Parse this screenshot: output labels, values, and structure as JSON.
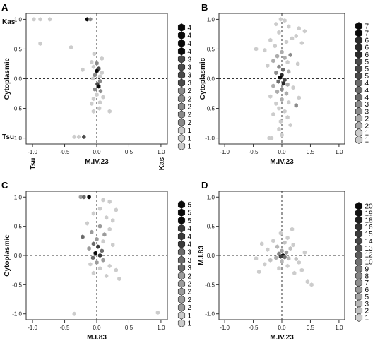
{
  "chart_data": [
    {
      "panel": "A",
      "type": "scatter",
      "xlabel": "M.IV.23",
      "ylabel": "Cytoplasmic",
      "xlim": [
        -1.1,
        1.1
      ],
      "ylim": [
        -1.1,
        1.1
      ],
      "xticks": [
        "-1.0",
        "-0.5",
        "0.0",
        "0.5",
        "1.0"
      ],
      "yticks": [
        "-1.0",
        "-0.5",
        "0.0",
        "0.5",
        "1.0"
      ],
      "corner_labels": [
        "Kas",
        "Tsu",
        "Tsu",
        "Kas"
      ],
      "legend_counts": [
        "4",
        "4",
        "4",
        "4",
        "3",
        "3",
        "3",
        "3",
        "2",
        "2",
        "2",
        "2",
        "2",
        "1",
        "1",
        "1"
      ],
      "max_count": 4,
      "points": [
        {
          "x": -0.98,
          "y": 1.0,
          "c": 1
        },
        {
          "x": -0.88,
          "y": 1.0,
          "c": 1
        },
        {
          "x": -0.73,
          "y": 1.0,
          "c": 1
        },
        {
          "x": -0.15,
          "y": 1.0,
          "c": 4
        },
        {
          "x": -0.1,
          "y": 1.0,
          "c": 2
        },
        {
          "x": -0.88,
          "y": 0.59,
          "c": 1
        },
        {
          "x": -0.4,
          "y": 0.53,
          "c": 1
        },
        {
          "x": -0.04,
          "y": 0.42,
          "c": 1
        },
        {
          "x": 0.08,
          "y": 0.34,
          "c": 1
        },
        {
          "x": -0.08,
          "y": 0.28,
          "c": 1
        },
        {
          "x": 0.0,
          "y": 0.26,
          "c": 2
        },
        {
          "x": -0.05,
          "y": 0.2,
          "c": 1
        },
        {
          "x": 0.03,
          "y": 0.17,
          "c": 3
        },
        {
          "x": -0.22,
          "y": 0.15,
          "c": 1
        },
        {
          "x": 0.0,
          "y": 0.13,
          "c": 4
        },
        {
          "x": 0.08,
          "y": 0.1,
          "c": 1
        },
        {
          "x": -0.03,
          "y": 0.06,
          "c": 2
        },
        {
          "x": 0.05,
          "y": 0.04,
          "c": 1
        },
        {
          "x": -0.06,
          "y": 0.0,
          "c": 1
        },
        {
          "x": 0.05,
          "y": -0.04,
          "c": 2
        },
        {
          "x": 0.01,
          "y": -0.09,
          "c": 3
        },
        {
          "x": 0.03,
          "y": -0.13,
          "c": 4
        },
        {
          "x": -0.03,
          "y": -0.18,
          "c": 2
        },
        {
          "x": 0.06,
          "y": -0.21,
          "c": 2
        },
        {
          "x": 0.0,
          "y": -0.27,
          "c": 1
        },
        {
          "x": 0.1,
          "y": -0.31,
          "c": 1
        },
        {
          "x": -0.05,
          "y": -0.34,
          "c": 1
        },
        {
          "x": 0.05,
          "y": -0.4,
          "c": 1
        },
        {
          "x": -0.08,
          "y": -0.42,
          "c": 1
        },
        {
          "x": 0.2,
          "y": -0.55,
          "c": 1
        },
        {
          "x": -0.05,
          "y": -0.55,
          "c": 1
        },
        {
          "x": 0.04,
          "y": -0.5,
          "c": 1
        },
        {
          "x": -0.35,
          "y": -0.98,
          "c": 1
        },
        {
          "x": -0.28,
          "y": -0.98,
          "c": 1
        },
        {
          "x": -0.2,
          "y": -0.98,
          "c": 3
        }
      ]
    },
    {
      "panel": "B",
      "type": "scatter",
      "xlabel": "M.IV.23",
      "ylabel": "Cytoplasmic",
      "xlim": [
        -1.1,
        1.1
      ],
      "ylim": [
        -1.1,
        1.1
      ],
      "xticks": [
        "-1.0",
        "-0.5",
        "0.0",
        "0.5",
        "1.0"
      ],
      "yticks": [
        "-1.0",
        "-0.5",
        "0.0",
        "0.5",
        "1.0"
      ],
      "legend_counts": [
        "7",
        "7",
        "6",
        "6",
        "6",
        "5",
        "5",
        "5",
        "4",
        "4",
        "4",
        "3",
        "3",
        "2",
        "2",
        "1",
        "1"
      ],
      "max_count": 7,
      "points": [
        {
          "x": -0.02,
          "y": 1.0,
          "c": 1
        },
        {
          "x": 0.05,
          "y": 0.98,
          "c": 1
        },
        {
          "x": -0.1,
          "y": 0.92,
          "c": 1
        },
        {
          "x": 0.12,
          "y": 0.88,
          "c": 1
        },
        {
          "x": 0.3,
          "y": 0.85,
          "c": 1
        },
        {
          "x": 0.4,
          "y": 0.8,
          "c": 1
        },
        {
          "x": -0.05,
          "y": 0.78,
          "c": 1
        },
        {
          "x": 0.25,
          "y": 0.72,
          "c": 1
        },
        {
          "x": 0.18,
          "y": 0.68,
          "c": 1
        },
        {
          "x": -0.2,
          "y": 0.65,
          "c": 1
        },
        {
          "x": 0.08,
          "y": 0.62,
          "c": 1
        },
        {
          "x": 0.35,
          "y": 0.6,
          "c": 1
        },
        {
          "x": -0.12,
          "y": 0.55,
          "c": 1
        },
        {
          "x": -0.45,
          "y": 0.5,
          "c": 1
        },
        {
          "x": -0.3,
          "y": 0.48,
          "c": 1
        },
        {
          "x": 0.0,
          "y": 0.45,
          "c": 2
        },
        {
          "x": 0.15,
          "y": 0.4,
          "c": 3
        },
        {
          "x": -0.08,
          "y": 0.38,
          "c": 2
        },
        {
          "x": 0.05,
          "y": 0.35,
          "c": 2
        },
        {
          "x": -0.15,
          "y": 0.3,
          "c": 2
        },
        {
          "x": 0.1,
          "y": 0.28,
          "c": 1
        },
        {
          "x": 0.28,
          "y": 0.25,
          "c": 1
        },
        {
          "x": -0.25,
          "y": 0.22,
          "c": 1
        },
        {
          "x": -0.05,
          "y": 0.2,
          "c": 3
        },
        {
          "x": 0.02,
          "y": 0.15,
          "c": 4
        },
        {
          "x": 0.12,
          "y": 0.12,
          "c": 2
        },
        {
          "x": -0.1,
          "y": 0.1,
          "c": 3
        },
        {
          "x": 0.0,
          "y": 0.06,
          "c": 6
        },
        {
          "x": -0.03,
          "y": 0.02,
          "c": 7
        },
        {
          "x": 0.05,
          "y": -0.02,
          "c": 5
        },
        {
          "x": -0.06,
          "y": -0.05,
          "c": 4
        },
        {
          "x": 0.03,
          "y": -0.08,
          "c": 6
        },
        {
          "x": 0.1,
          "y": -0.1,
          "c": 2
        },
        {
          "x": -0.15,
          "y": -0.12,
          "c": 2
        },
        {
          "x": 0.2,
          "y": -0.15,
          "c": 1
        },
        {
          "x": 0.0,
          "y": -0.18,
          "c": 3
        },
        {
          "x": -0.08,
          "y": -0.22,
          "c": 2
        },
        {
          "x": 0.08,
          "y": -0.25,
          "c": 2
        },
        {
          "x": -0.2,
          "y": -0.3,
          "c": 1
        },
        {
          "x": 0.3,
          "y": -0.32,
          "c": 1
        },
        {
          "x": 0.0,
          "y": -0.35,
          "c": 2
        },
        {
          "x": 0.12,
          "y": -0.4,
          "c": 1
        },
        {
          "x": -0.1,
          "y": -0.42,
          "c": 1
        },
        {
          "x": 0.25,
          "y": -0.45,
          "c": 3
        },
        {
          "x": -0.05,
          "y": -0.5,
          "c": 1
        },
        {
          "x": 0.05,
          "y": -0.55,
          "c": 1
        },
        {
          "x": -0.15,
          "y": -0.6,
          "c": 1
        },
        {
          "x": 0.1,
          "y": -0.65,
          "c": 1
        },
        {
          "x": -0.02,
          "y": -0.72,
          "c": 1
        },
        {
          "x": 0.15,
          "y": -0.78,
          "c": 1
        },
        {
          "x": -0.05,
          "y": -0.85,
          "c": 1
        },
        {
          "x": 0.0,
          "y": -0.95,
          "c": 1
        },
        {
          "x": -0.18,
          "y": -1.0,
          "c": 1
        },
        {
          "x": -0.22,
          "y": -1.0,
          "c": 1
        }
      ]
    },
    {
      "panel": "C",
      "type": "scatter",
      "xlabel": "M.I.83",
      "ylabel": "Cytoplasmic",
      "xlim": [
        -1.1,
        1.1
      ],
      "ylim": [
        -1.1,
        1.1
      ],
      "xticks": [
        "-1.0",
        "-0.5",
        "0.0",
        "0.5",
        "1.0"
      ],
      "yticks": [
        "-1.0",
        "-0.5",
        "0.0",
        "0.5",
        "1.0"
      ],
      "legend_counts": [
        "5",
        "5",
        "5",
        "4",
        "4",
        "4",
        "3",
        "3",
        "3",
        "2",
        "2",
        "2",
        "2",
        "2",
        "1",
        "1"
      ],
      "max_count": 5,
      "points": [
        {
          "x": -0.25,
          "y": 1.0,
          "c": 2
        },
        {
          "x": -0.2,
          "y": 1.0,
          "c": 3
        },
        {
          "x": -0.12,
          "y": 1.0,
          "c": 5
        },
        {
          "x": 0.1,
          "y": 0.95,
          "c": 1
        },
        {
          "x": 0.2,
          "y": 0.92,
          "c": 1
        },
        {
          "x": 0.05,
          "y": 0.8,
          "c": 1
        },
        {
          "x": 0.3,
          "y": 0.78,
          "c": 1
        },
        {
          "x": -0.05,
          "y": 0.72,
          "c": 1
        },
        {
          "x": 0.15,
          "y": 0.65,
          "c": 1
        },
        {
          "x": 0.25,
          "y": 0.6,
          "c": 1
        },
        {
          "x": -0.15,
          "y": 0.55,
          "c": 1
        },
        {
          "x": 0.05,
          "y": 0.5,
          "c": 2
        },
        {
          "x": 0.2,
          "y": 0.45,
          "c": 1
        },
        {
          "x": -0.08,
          "y": 0.4,
          "c": 2
        },
        {
          "x": 0.12,
          "y": 0.36,
          "c": 2
        },
        {
          "x": -0.22,
          "y": 0.32,
          "c": 3
        },
        {
          "x": 0.0,
          "y": 0.28,
          "c": 2
        },
        {
          "x": 0.1,
          "y": 0.24,
          "c": 1
        },
        {
          "x": -0.05,
          "y": 0.2,
          "c": 3
        },
        {
          "x": 0.25,
          "y": 0.18,
          "c": 1
        },
        {
          "x": 0.02,
          "y": 0.15,
          "c": 4
        },
        {
          "x": -0.12,
          "y": 0.12,
          "c": 2
        },
        {
          "x": 0.08,
          "y": 0.08,
          "c": 3
        },
        {
          "x": -0.02,
          "y": 0.04,
          "c": 5
        },
        {
          "x": 0.05,
          "y": 0.0,
          "c": 4
        },
        {
          "x": -0.06,
          "y": -0.04,
          "c": 3
        },
        {
          "x": 0.1,
          "y": -0.08,
          "c": 2
        },
        {
          "x": 0.0,
          "y": -0.12,
          "c": 2
        },
        {
          "x": -0.1,
          "y": -0.15,
          "c": 1
        },
        {
          "x": 0.2,
          "y": -0.18,
          "c": 1
        },
        {
          "x": 0.05,
          "y": -0.22,
          "c": 1
        },
        {
          "x": 0.3,
          "y": -0.25,
          "c": 1
        },
        {
          "x": -0.05,
          "y": -0.3,
          "c": 1
        },
        {
          "x": 0.15,
          "y": -0.35,
          "c": 1
        },
        {
          "x": 0.35,
          "y": -0.4,
          "c": 1
        },
        {
          "x": -0.35,
          "y": -1.0,
          "c": 1
        },
        {
          "x": 0.95,
          "y": -0.98,
          "c": 1
        }
      ]
    },
    {
      "panel": "D",
      "type": "scatter",
      "xlabel": "M.IV.23",
      "ylabel": "M.I.83",
      "xlim": [
        -1.1,
        1.1
      ],
      "ylim": [
        -1.1,
        1.1
      ],
      "xticks": [
        "-1.0",
        "-0.5",
        "0.0",
        "0.5",
        "1.0"
      ],
      "yticks": [
        "-1.0",
        "-0.5",
        "0.0",
        "0.5",
        "1.0"
      ],
      "legend_counts": [
        "20",
        "19",
        "18",
        "16",
        "15",
        "14",
        "13",
        "12",
        "10",
        "9",
        "8",
        "7",
        "6",
        "5",
        "3",
        "2",
        "1"
      ],
      "max_count": 20,
      "points": [
        {
          "x": -0.02,
          "y": 0.38,
          "c": 1
        },
        {
          "x": 0.1,
          "y": 0.3,
          "c": 1
        },
        {
          "x": -0.15,
          "y": 0.25,
          "c": 1
        },
        {
          "x": 0.05,
          "y": 0.22,
          "c": 2
        },
        {
          "x": 0.2,
          "y": 0.18,
          "c": 1
        },
        {
          "x": -0.08,
          "y": 0.15,
          "c": 3
        },
        {
          "x": 0.15,
          "y": 0.12,
          "c": 2
        },
        {
          "x": -0.25,
          "y": 0.1,
          "c": 1
        },
        {
          "x": 0.0,
          "y": 0.08,
          "c": 5
        },
        {
          "x": 0.08,
          "y": 0.05,
          "c": 6
        },
        {
          "x": -0.05,
          "y": 0.03,
          "c": 8
        },
        {
          "x": 0.02,
          "y": 0.0,
          "c": 20
        },
        {
          "x": -0.02,
          "y": -0.02,
          "c": 15
        },
        {
          "x": 0.05,
          "y": -0.03,
          "c": 10
        },
        {
          "x": -0.1,
          "y": -0.04,
          "c": 4
        },
        {
          "x": 0.12,
          "y": -0.05,
          "c": 3
        },
        {
          "x": 0.25,
          "y": -0.06,
          "c": 2
        },
        {
          "x": -0.2,
          "y": -0.08,
          "c": 2
        },
        {
          "x": 0.0,
          "y": -0.1,
          "c": 3
        },
        {
          "x": 0.3,
          "y": -0.12,
          "c": 1
        },
        {
          "x": -0.3,
          "y": -0.15,
          "c": 1
        },
        {
          "x": 0.1,
          "y": -0.18,
          "c": 1
        },
        {
          "x": -0.05,
          "y": -0.22,
          "c": 1
        },
        {
          "x": 0.35,
          "y": -0.25,
          "c": 1
        },
        {
          "x": -0.4,
          "y": -0.28,
          "c": 1
        },
        {
          "x": 0.45,
          "y": -0.45,
          "c": 1
        },
        {
          "x": 0.52,
          "y": -0.5,
          "c": 1
        },
        {
          "x": 0.18,
          "y": 0.45,
          "c": 1
        },
        {
          "x": -0.35,
          "y": 0.2,
          "c": 1
        },
        {
          "x": 0.4,
          "y": 0.05,
          "c": 1
        },
        {
          "x": -0.45,
          "y": -0.05,
          "c": 1
        },
        {
          "x": 0.22,
          "y": -0.3,
          "c": 1
        }
      ]
    }
  ]
}
